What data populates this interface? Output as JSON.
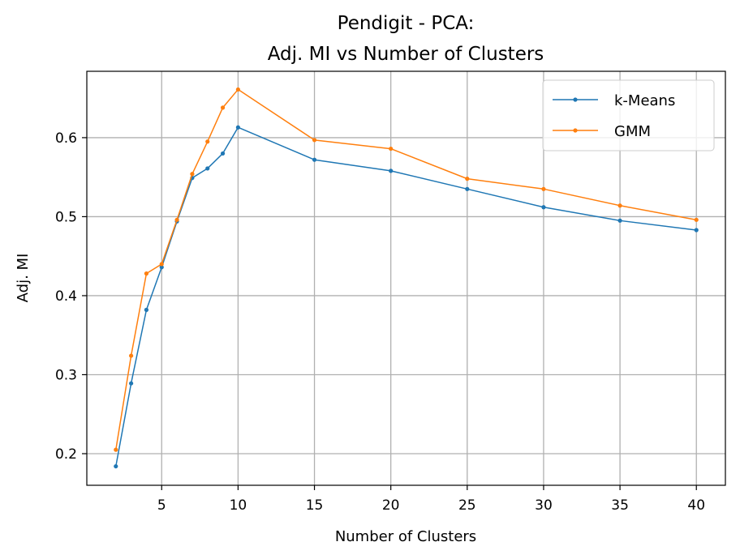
{
  "chart_data": {
    "type": "line",
    "title_line1": "Pendigit - PCA:",
    "title_line2": "Adj. MI vs Number of Clusters",
    "xlabel": "Number of Clusters",
    "ylabel": "Adj. MI",
    "xlim": [
      0.1,
      41.9
    ],
    "ylim": [
      0.16,
      0.684
    ],
    "xticks": [
      5,
      10,
      15,
      20,
      25,
      30,
      35,
      40
    ],
    "yticks": [
      0.2,
      0.3,
      0.4,
      0.5,
      0.6
    ],
    "ytick_labels": [
      "0.2",
      "0.3",
      "0.4",
      "0.5",
      "0.6"
    ],
    "grid": true,
    "legend_position": "upper right",
    "x": [
      2,
      3,
      4,
      5,
      6,
      7,
      8,
      9,
      10,
      15,
      20,
      25,
      30,
      35,
      40
    ],
    "series": [
      {
        "name": "k-Means",
        "color": "#1f77b4",
        "values": [
          0.184,
          0.289,
          0.382,
          0.436,
          0.494,
          0.549,
          0.561,
          0.58,
          0.613,
          0.572,
          0.558,
          0.535,
          0.512,
          0.495,
          0.483
        ]
      },
      {
        "name": "GMM",
        "color": "#ff7f0e",
        "values": [
          0.205,
          0.324,
          0.428,
          0.44,
          0.496,
          0.554,
          0.595,
          0.638,
          0.661,
          0.597,
          0.586,
          0.548,
          0.535,
          0.514,
          0.496
        ]
      }
    ]
  }
}
